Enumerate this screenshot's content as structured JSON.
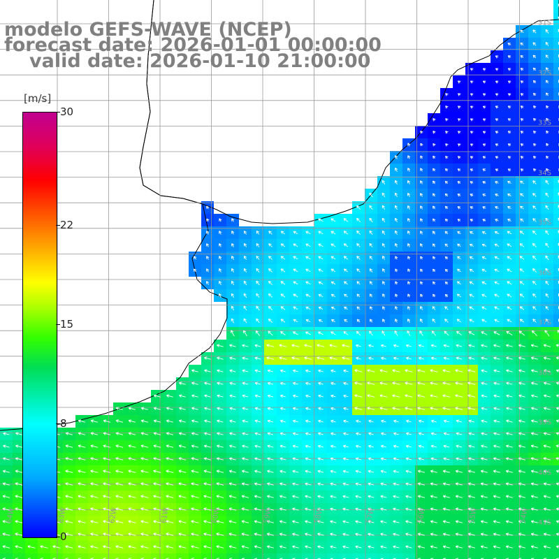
{
  "title": {
    "line1": "modelo GEFS-WAVE (NCEP)",
    "line2": "forecast date: 2026-01-01 00:00:00",
    "line3": "valid date: 2026-01-10 21:00:00"
  },
  "colorbar": {
    "unit": "[m/s]",
    "ticks": [
      "30",
      "22",
      "15",
      "8",
      "0"
    ],
    "tick_values": [
      30,
      22,
      15,
      8,
      0
    ],
    "range": [
      0,
      30
    ],
    "colors": [
      "#0000ff",
      "#00aaff",
      "#00ffff",
      "#00dd55",
      "#33ff00",
      "#aaff00",
      "#ffff00",
      "#ffaa00",
      "#ff5500",
      "#ff0000",
      "#c00090"
    ]
  },
  "map": {
    "variable": "wind speed",
    "latitude_labels": [
      "31S",
      "32S",
      "33S",
      "34S",
      "35S",
      "36S",
      "37S",
      "38S",
      "39S",
      "40S",
      "41S"
    ],
    "longitude_labels": [
      "64W",
      "63W",
      "62W",
      "61W",
      "60W",
      "59W",
      "58W",
      "57W",
      "56W",
      "55W",
      "54W"
    ],
    "lat_range": [
      -41,
      -31
    ],
    "lon_range": [
      -64.5,
      -53.5
    ],
    "land_color": "#ffffff",
    "coastline_color": "#000000",
    "grid_color": "#999999",
    "arrow_color": "#ffffff"
  }
}
